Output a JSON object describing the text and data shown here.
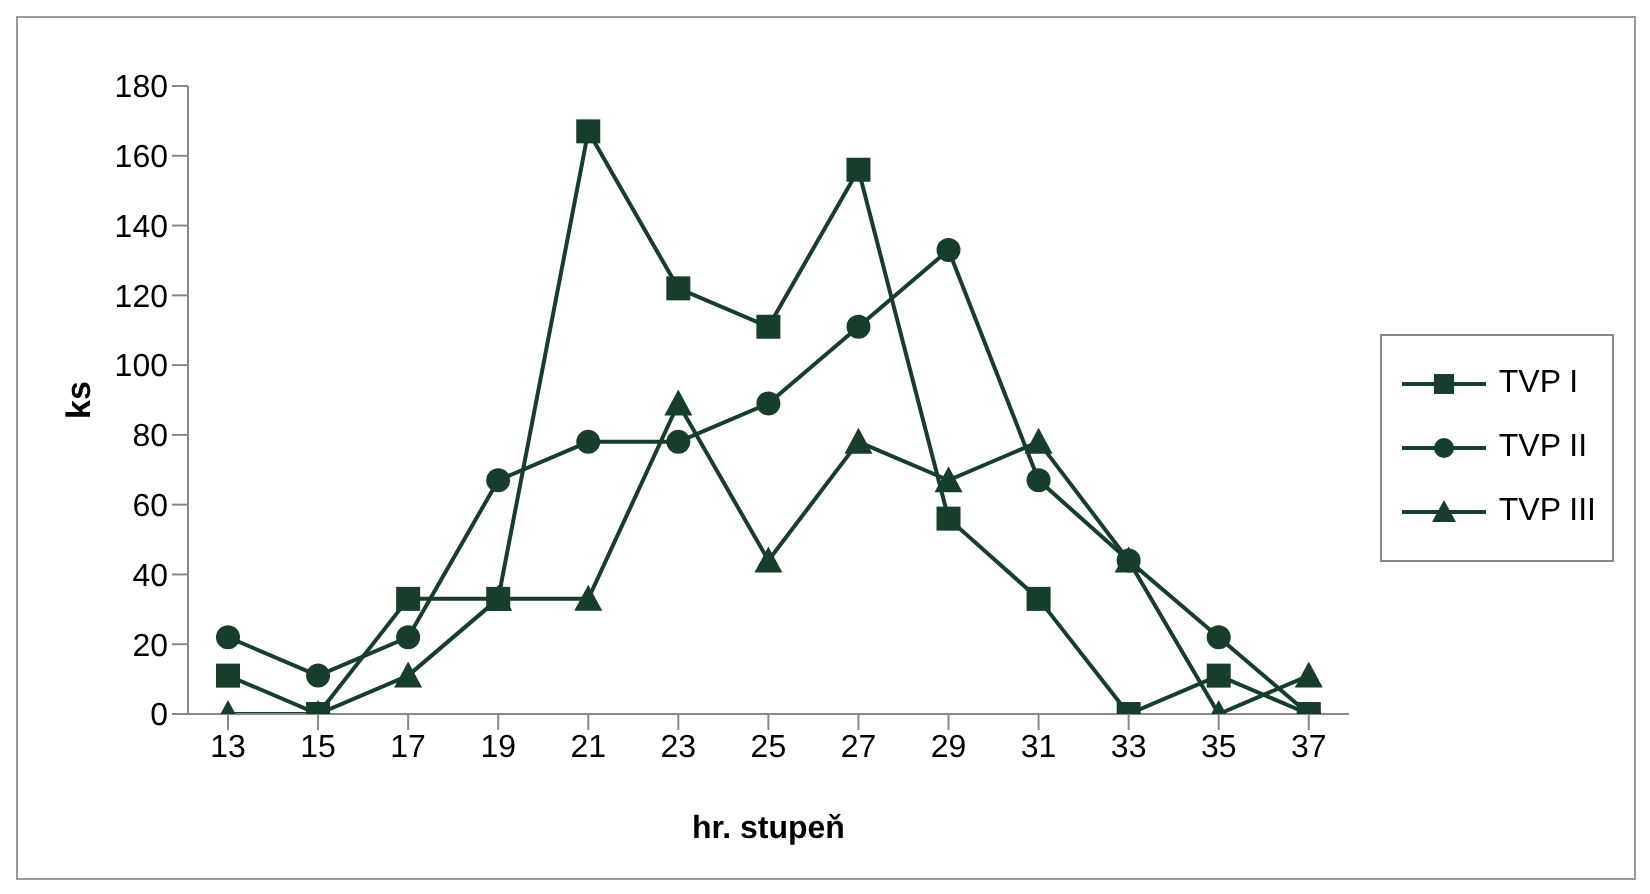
{
  "chart_data": {
    "type": "line",
    "xlabel": "hr. stupeň",
    "ylabel": "ks",
    "categories": [
      "13",
      "15",
      "17",
      "19",
      "21",
      "23",
      "25",
      "27",
      "29",
      "31",
      "33",
      "35",
      "37"
    ],
    "series": [
      {
        "name": "TVP I",
        "color": "#173d2b",
        "marker": "square",
        "values": [
          11,
          0,
          33,
          33,
          167,
          122,
          111,
          156,
          56,
          33,
          0,
          11,
          0
        ]
      },
      {
        "name": "TVP II",
        "color": "#173d2b",
        "marker": "circle",
        "values": [
          22,
          11,
          22,
          67,
          78,
          78,
          89,
          111,
          133,
          67,
          44,
          22,
          0
        ]
      },
      {
        "name": "TVP III",
        "color": "#173d2b",
        "marker": "triangle",
        "values": [
          0,
          0,
          11,
          33,
          33,
          89,
          44,
          78,
          67,
          78,
          44,
          0,
          11
        ]
      }
    ],
    "ylim": [
      0,
      180
    ],
    "yticks": [
      0,
      20,
      40,
      60,
      80,
      100,
      120,
      140,
      160,
      180
    ],
    "grid": false,
    "legend": "right",
    "line_style": "solid"
  }
}
